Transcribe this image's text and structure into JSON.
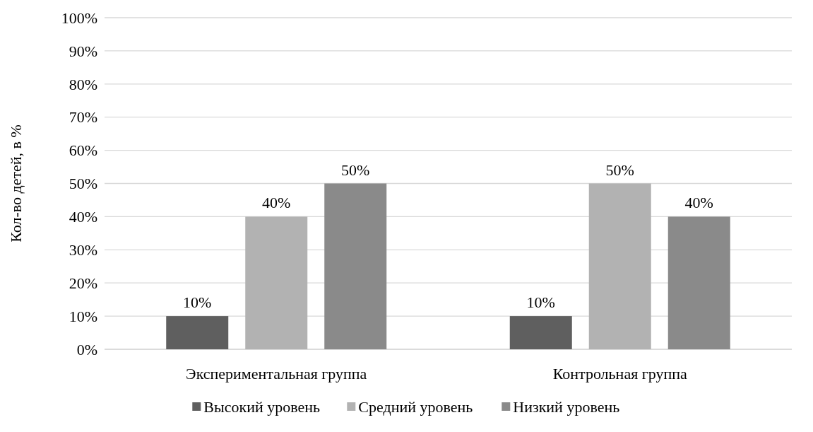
{
  "chart_data": {
    "type": "bar",
    "ylabel": "Кол-во детей, в %",
    "categories": [
      "Экспериментальная группа",
      "Контрольная группа"
    ],
    "series": [
      {
        "name": "Высокий уровень",
        "color": "#5f5f5f",
        "values": [
          10,
          10
        ],
        "value_labels": [
          "10%",
          "10%"
        ]
      },
      {
        "name": "Средний уровень",
        "color": "#b2b2b2",
        "values": [
          40,
          50
        ],
        "value_labels": [
          "40%",
          "50%"
        ]
      },
      {
        "name": "Низкий уровень",
        "color": "#8a8a8a",
        "values": [
          50,
          40
        ],
        "value_labels": [
          "50%",
          "40%"
        ]
      }
    ],
    "ylim": [
      0,
      100
    ],
    "yticks": [
      {
        "value": 0,
        "label": "0%"
      },
      {
        "value": 10,
        "label": "10%"
      },
      {
        "value": 20,
        "label": "20%"
      },
      {
        "value": 30,
        "label": "30%"
      },
      {
        "value": 40,
        "label": "40%"
      },
      {
        "value": 50,
        "label": "50%"
      },
      {
        "value": 60,
        "label": "60%"
      },
      {
        "value": 70,
        "label": "70%"
      },
      {
        "value": 80,
        "label": "80%"
      },
      {
        "value": 90,
        "label": "90%"
      },
      {
        "value": 100,
        "label": "100%"
      }
    ],
    "grid": "y",
    "legend": "bottom"
  }
}
